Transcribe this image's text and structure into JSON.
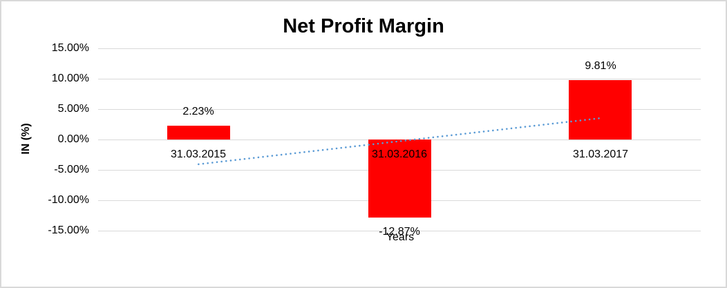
{
  "chart_data": {
    "type": "bar",
    "title": "Net Profit Margin",
    "categories": [
      "31.03.2015",
      "31.03.2016",
      "31.03.2017"
    ],
    "values": [
      2.23,
      -12.87,
      9.81
    ],
    "data_labels": [
      "2.23%",
      "-12.87%",
      "9.81%"
    ],
    "xlabel": "Years",
    "ylabel": "IN (%)",
    "ylim": [
      -15,
      15
    ],
    "ytick_step": 5,
    "ytick_labels": [
      "15.00%",
      "10.00%",
      "5.00%",
      "0.00%",
      "-5.00%",
      "-10.00%",
      "-15.00%"
    ],
    "ytick_values": [
      15,
      10,
      5,
      0,
      -5,
      -10,
      -15
    ],
    "grid": true,
    "legend": "none",
    "bar_color": "#FF0000",
    "gridline_color": "#D9D9D9",
    "text_color": "#000000",
    "trendline": {
      "type": "linear",
      "style": "dotted",
      "color": "#5B9BD5",
      "start_value": -4.07,
      "end_value": 3.51
    }
  }
}
